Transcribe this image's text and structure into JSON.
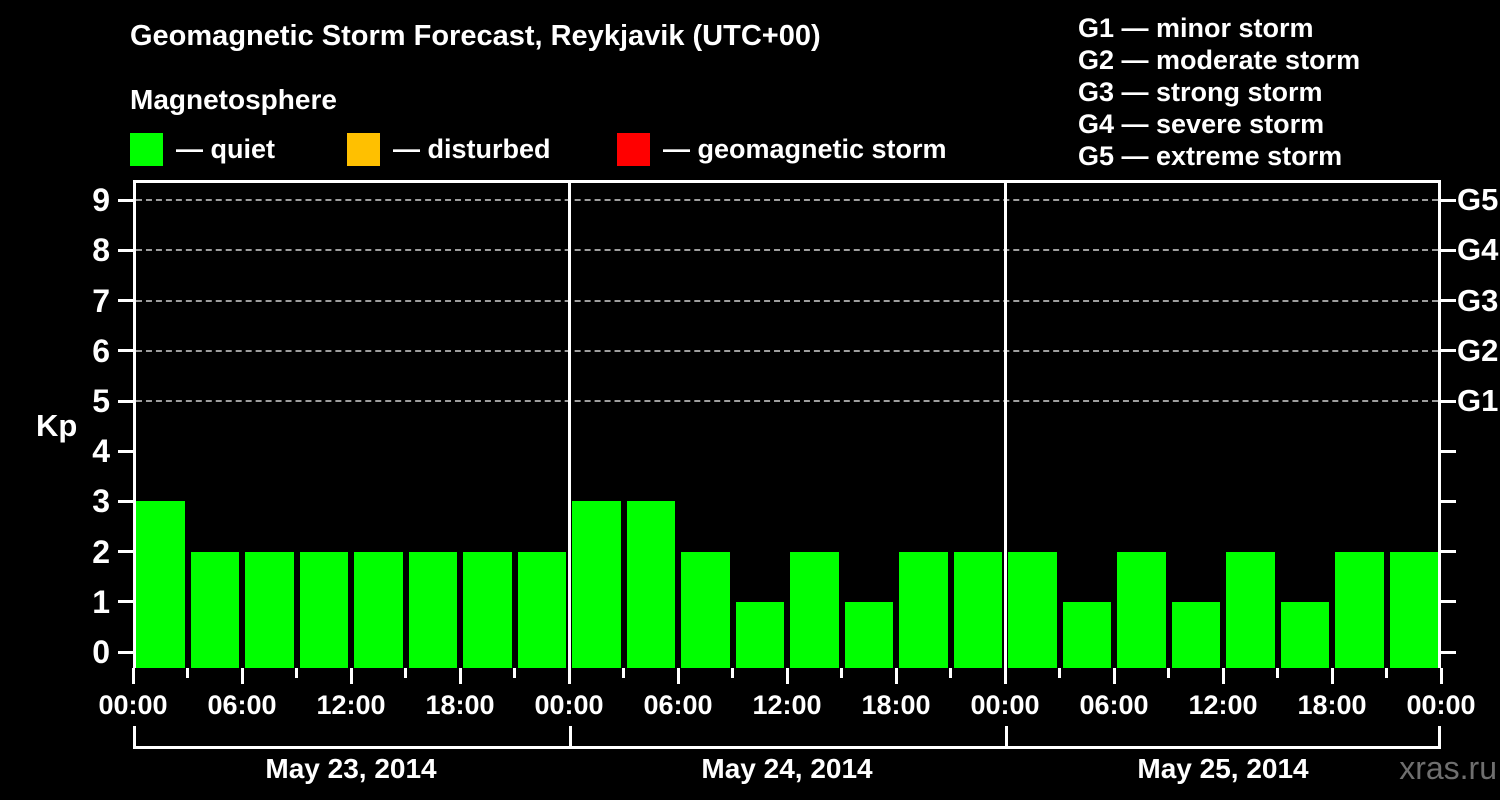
{
  "page": {
    "background": "#000000",
    "watermark": "xras.ru",
    "watermark_color": "#6f6f6f"
  },
  "header": {
    "title": "Geomagnetic Storm Forecast, Reykjavik (UTC+00)",
    "subtitle": "Magnetosphere"
  },
  "legend": {
    "items": [
      {
        "name": "quiet",
        "label": "— quiet",
        "color": "#00ff00"
      },
      {
        "name": "disturbed",
        "label": "— disturbed",
        "color": "#ffc000"
      },
      {
        "name": "geomagnetic-storm",
        "label": "— geomagnetic storm",
        "color": "#ff0000"
      }
    ]
  },
  "g_scale_legend": {
    "items": [
      "G1 — minor storm",
      "G2 — moderate storm",
      "G3 — strong storm",
      "G4 — severe storm",
      "G5 — extreme storm"
    ]
  },
  "chart_data": {
    "type": "bar",
    "title": "Geomagnetic Storm Forecast, Reykjavik (UTC+00)",
    "subtitle": "Magnetosphere",
    "ylabel": "Kp",
    "ylim": [
      0,
      9.5
    ],
    "interval_hours": 3,
    "bar_color": "#00ff00",
    "grid": "horizontal dashed gridlines at Kp 5,6,7,8,9",
    "gridline_color": "#9e9e9e",
    "axis_color": "#ffffff",
    "y_ticks": [
      0,
      1,
      2,
      3,
      4,
      5,
      6,
      7,
      8,
      9
    ],
    "x_tick_labels": [
      "00:00",
      "06:00",
      "12:00",
      "18:00",
      "00:00",
      "06:00",
      "12:00",
      "18:00",
      "00:00",
      "06:00",
      "12:00",
      "18:00",
      "00:00"
    ],
    "right_axis": {
      "labels": [
        "G1",
        "G2",
        "G3",
        "G4",
        "G5"
      ],
      "at_kp": [
        5,
        6,
        7,
        8,
        9
      ]
    },
    "days": [
      {
        "date": "May 23, 2014",
        "kp_values": [
          3,
          2,
          2,
          2,
          2,
          2,
          2,
          2
        ]
      },
      {
        "date": "May 24, 2014",
        "kp_values": [
          3,
          3,
          2,
          1,
          2,
          1,
          2,
          2
        ]
      },
      {
        "date": "May 25, 2014",
        "kp_values": [
          2,
          1,
          2,
          1,
          2,
          1,
          2,
          2
        ]
      }
    ]
  }
}
